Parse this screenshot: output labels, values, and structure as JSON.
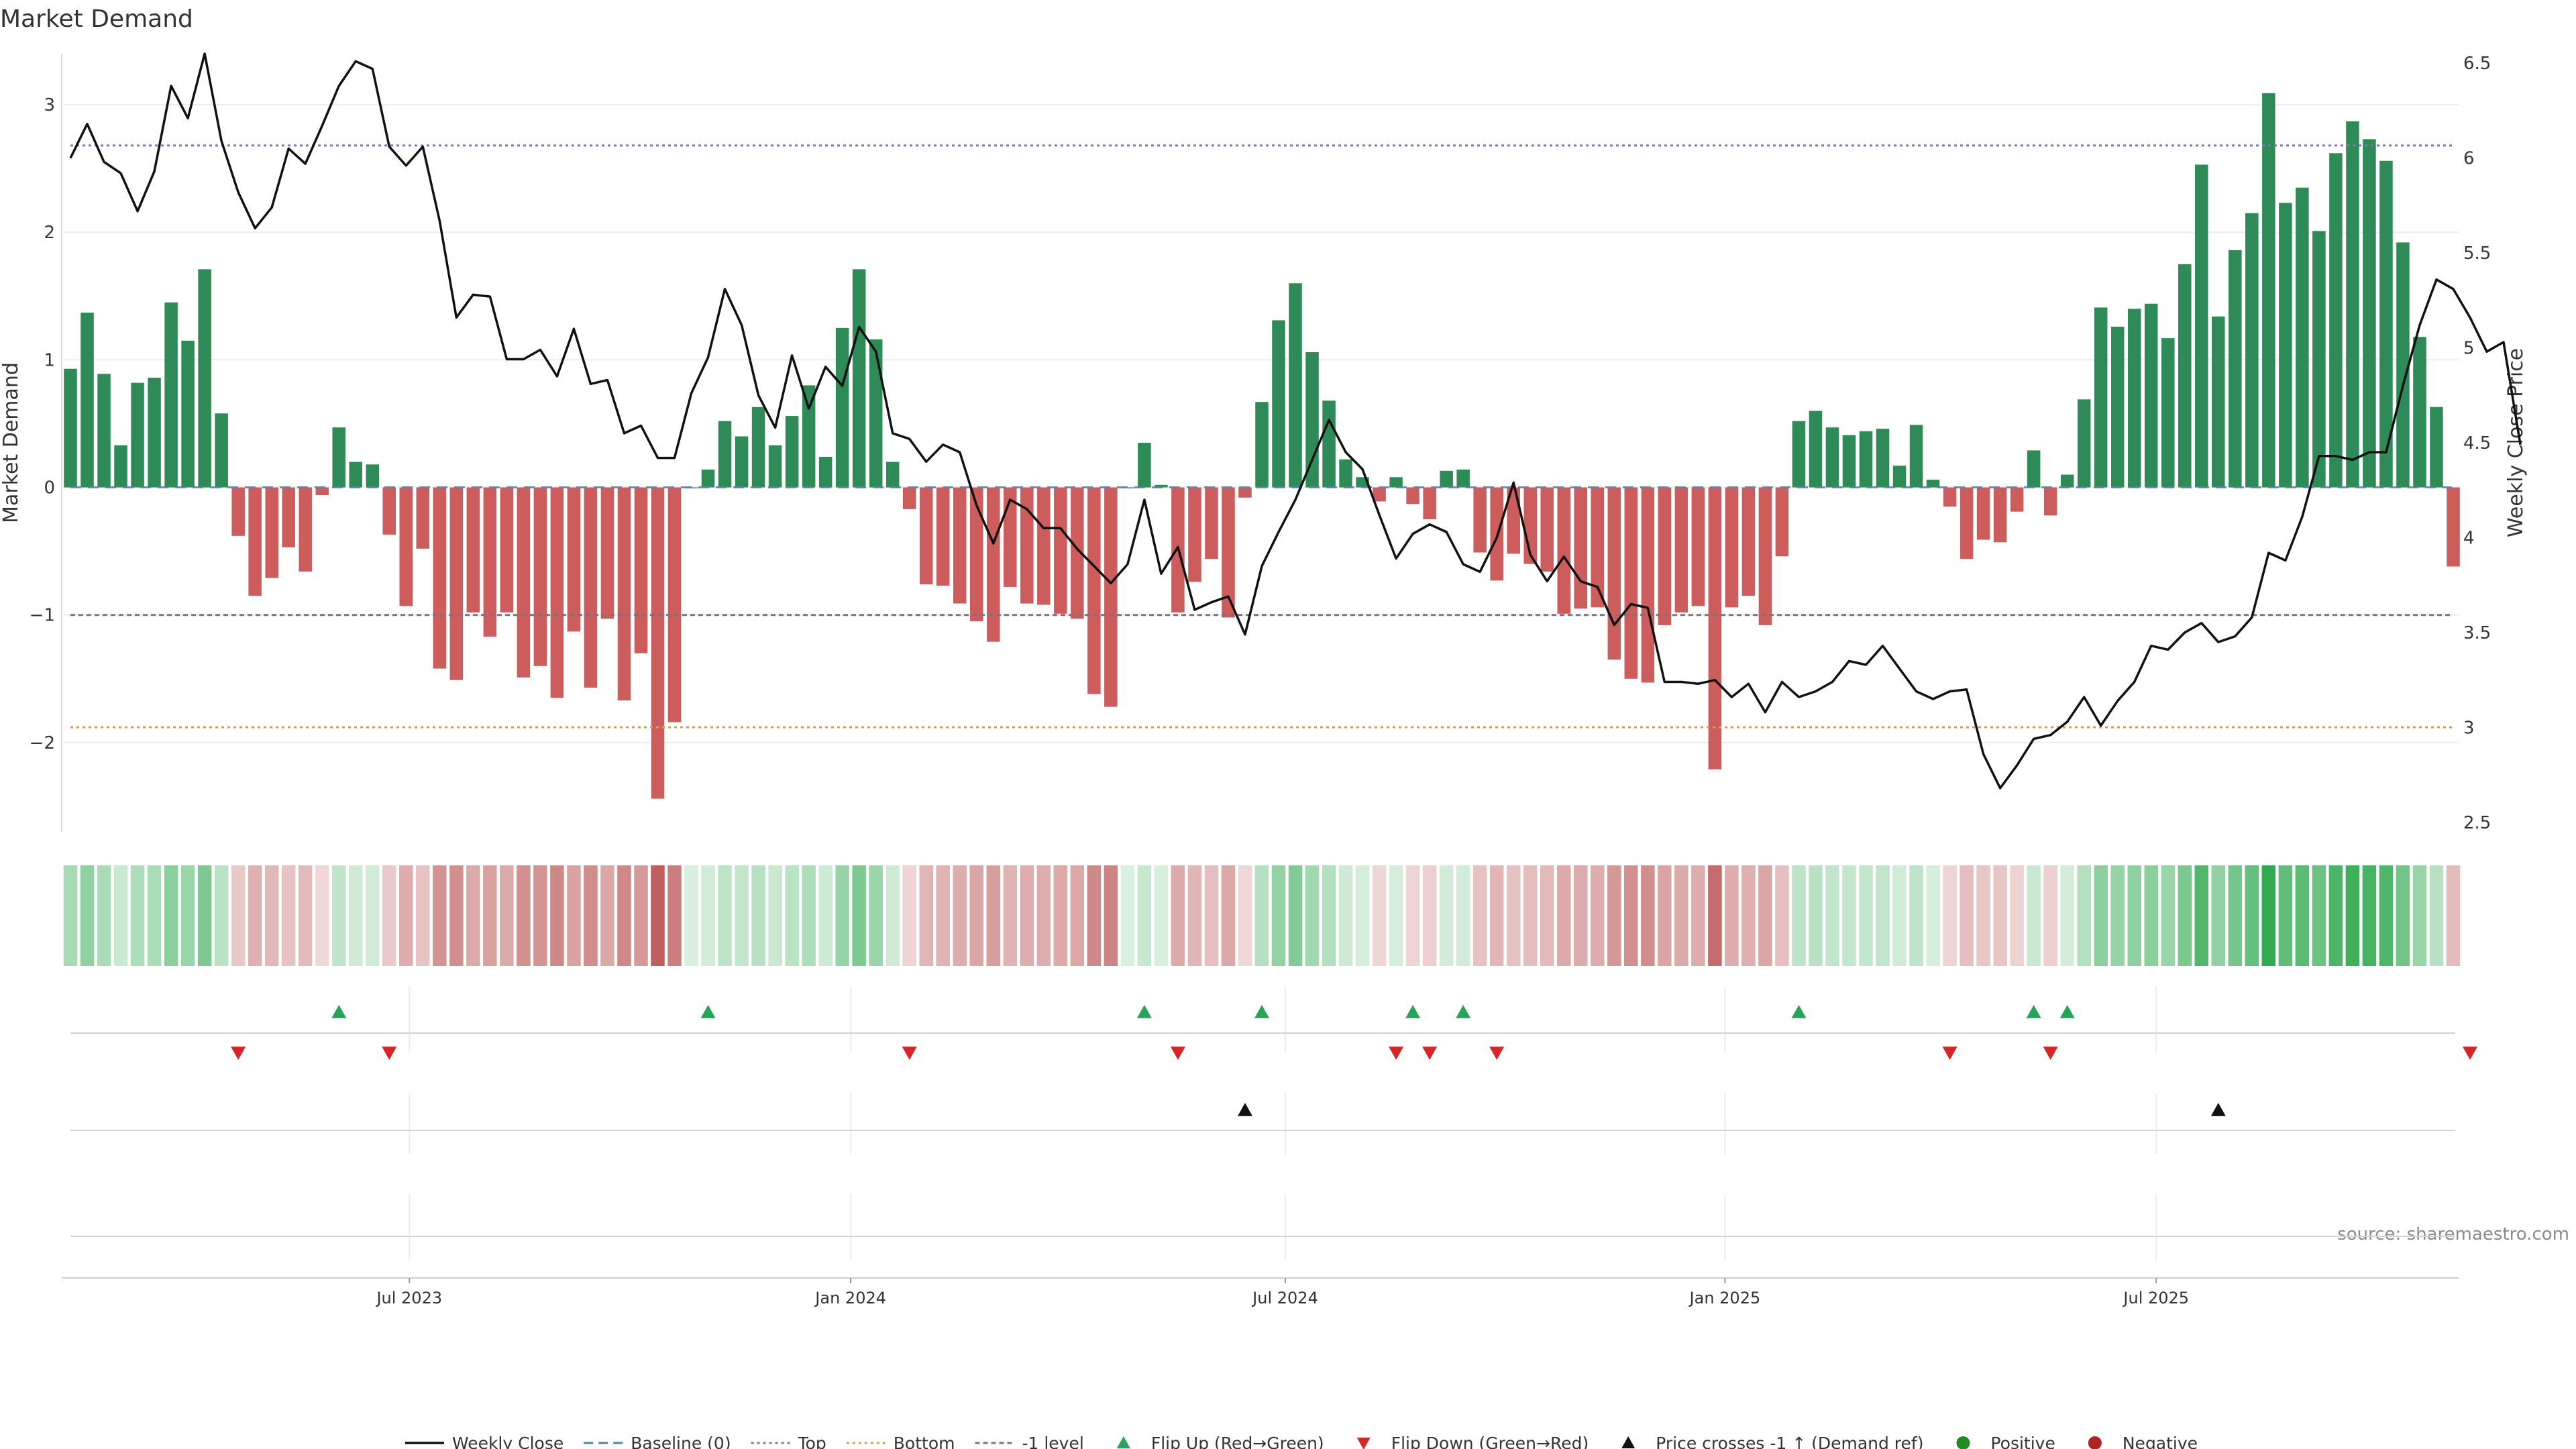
{
  "chart_data": {
    "type": "bar",
    "title": "Market Demand",
    "ylabel_left": "Market Demand",
    "ylabel_right": "Weekly Close Price",
    "source": "source: sharemaestro.com",
    "y_left_range": [
      -2.7,
      3.4
    ],
    "y_right_range": [
      2.45,
      6.55
    ],
    "y_left_ticks": [
      {
        "value": 3,
        "label": "3"
      },
      {
        "value": 2,
        "label": "2"
      },
      {
        "value": 1,
        "label": "1"
      },
      {
        "value": 0,
        "label": "0"
      },
      {
        "value": -1,
        "label": "−1"
      },
      {
        "value": -2,
        "label": "−2"
      }
    ],
    "y_right_ticks": [
      {
        "value": 6.5,
        "label": "6.5"
      },
      {
        "value": 6,
        "label": "6"
      },
      {
        "value": 5.5,
        "label": "5.5"
      },
      {
        "value": 5,
        "label": "5"
      },
      {
        "value": 4.5,
        "label": "4.5"
      },
      {
        "value": 4,
        "label": "4"
      },
      {
        "value": 3.5,
        "label": "3.5"
      },
      {
        "value": 3,
        "label": "3"
      },
      {
        "value": 2.5,
        "label": "2.5"
      }
    ],
    "x_ticks": [
      {
        "index": 20.2,
        "label": "Jul 2023"
      },
      {
        "index": 46.5,
        "label": "Jan 2024"
      },
      {
        "index": 72.4,
        "label": "Jul 2024"
      },
      {
        "index": 98.6,
        "label": "Jan 2025"
      },
      {
        "index": 124.3,
        "label": "Jul 2025"
      }
    ],
    "reference_lines": {
      "top": 2.68,
      "bottom": -1.88,
      "minus_one": -1.0
    },
    "demand": [
      0.93,
      1.37,
      0.89,
      0.33,
      0.82,
      0.86,
      1.45,
      1.15,
      1.71,
      0.58,
      -0.38,
      -0.85,
      -0.71,
      -0.47,
      -0.66,
      -0.06,
      0.47,
      0.2,
      0.18,
      -0.37,
      -0.93,
      -0.48,
      -1.42,
      -1.51,
      -0.98,
      -1.17,
      -0.98,
      -1.49,
      -1.4,
      -1.65,
      -1.13,
      -1.57,
      -1.03,
      -1.67,
      -1.3,
      -2.44,
      -1.84,
      0.0,
      0.14,
      0.52,
      0.4,
      0.63,
      0.33,
      0.56,
      0.8,
      0.24,
      1.25,
      1.71,
      1.16,
      0.2,
      -0.17,
      -0.76,
      -0.77,
      -0.91,
      -1.05,
      -1.21,
      -0.78,
      -0.91,
      -0.92,
      -0.99,
      -1.03,
      -1.62,
      -1.72,
      0.0,
      0.35,
      0.02,
      -0.98,
      -0.74,
      -0.56,
      -1.02,
      -0.08,
      0.67,
      1.31,
      1.6,
      1.06,
      0.68,
      0.22,
      0.08,
      -0.11,
      0.08,
      -0.13,
      -0.25,
      0.13,
      0.14,
      -0.51,
      -0.73,
      -0.52,
      -0.6,
      -0.66,
      -0.99,
      -0.95,
      -0.94,
      -1.35,
      -1.5,
      -1.53,
      -1.08,
      -0.98,
      -0.93,
      -2.21,
      -0.94,
      -0.85,
      -1.08,
      -0.54,
      0.52,
      0.6,
      0.47,
      0.41,
      0.44,
      0.46,
      0.17,
      0.49,
      0.06,
      -0.15,
      -0.56,
      -0.41,
      -0.43,
      -0.19,
      0.29,
      -0.22,
      0.1,
      0.69,
      1.41,
      1.26,
      1.4,
      1.44,
      1.17,
      1.75,
      2.53,
      1.34,
      1.86,
      2.15,
      3.09,
      2.23,
      2.35,
      2.01,
      2.62,
      2.87,
      2.73,
      2.56,
      1.92,
      1.18,
      0.63,
      -0.62
    ],
    "close": [
      6.0,
      6.18,
      5.98,
      5.92,
      5.72,
      5.93,
      6.38,
      6.21,
      6.55,
      6.09,
      5.82,
      5.63,
      5.74,
      6.05,
      5.97,
      6.17,
      6.38,
      6.51,
      6.47,
      6.06,
      5.96,
      6.06,
      5.67,
      5.16,
      5.28,
      5.27,
      4.94,
      4.94,
      4.99,
      4.85,
      5.1,
      4.81,
      4.83,
      4.55,
      4.59,
      4.42,
      4.42,
      4.76,
      4.95,
      5.31,
      5.12,
      4.75,
      4.58,
      4.96,
      4.68,
      4.9,
      4.8,
      5.11,
      4.98,
      4.55,
      4.52,
      4.4,
      4.49,
      4.45,
      4.17,
      3.97,
      4.2,
      4.15,
      4.05,
      4.05,
      3.94,
      3.85,
      3.76,
      3.86,
      4.2,
      3.81,
      3.95,
      3.62,
      3.66,
      3.69,
      3.49,
      3.85,
      4.03,
      4.2,
      4.41,
      4.62,
      4.45,
      4.36,
      4.12,
      3.89,
      4.02,
      4.07,
      4.03,
      3.86,
      3.82,
      4.0,
      4.29,
      3.91,
      3.77,
      3.9,
      3.77,
      3.74,
      3.54,
      3.65,
      3.63,
      3.24,
      3.24,
      3.23,
      3.25,
      3.16,
      3.23,
      3.08,
      3.24,
      3.16,
      3.19,
      3.24,
      3.35,
      3.33,
      3.43,
      3.31,
      3.19,
      3.15,
      3.19,
      3.2,
      2.86,
      2.68,
      2.8,
      2.94,
      2.96,
      3.03,
      3.16,
      3.01,
      3.14,
      3.24,
      3.43,
      3.41,
      3.5,
      3.55,
      3.45,
      3.48,
      3.58,
      3.92,
      3.88,
      4.11,
      4.43,
      4.43,
      4.41,
      4.45,
      4.45,
      4.8,
      5.12,
      5.36,
      5.31,
      5.16,
      4.98,
      5.03,
      4.49
    ],
    "flip_up_indices": [
      16,
      38,
      64,
      71,
      80,
      83,
      103,
      117,
      119
    ],
    "flip_down_indices": [
      10,
      19,
      50,
      66,
      79,
      81,
      85,
      112,
      118,
      143
    ],
    "price_cross_indices": [
      70,
      128
    ],
    "legend": [
      {
        "key": "close",
        "label": "Weekly Close"
      },
      {
        "key": "baseline",
        "label": "Baseline (0)"
      },
      {
        "key": "top",
        "label": "Top"
      },
      {
        "key": "bottom",
        "label": "Bottom"
      },
      {
        "key": "minus1",
        "label": "-1 level"
      },
      {
        "key": "flipup",
        "label": "Flip Up (Red→Green)"
      },
      {
        "key": "flipdown",
        "label": "Flip Down (Green→Red)"
      },
      {
        "key": "cross",
        "label": "Price crosses -1 ↑ (Demand ref)"
      },
      {
        "key": "positive",
        "label": "Positive"
      },
      {
        "key": "negative",
        "label": "Negative"
      }
    ],
    "colors": {
      "positive": "#2e8b57",
      "negative": "#cd5c5c",
      "close": "#111111",
      "baseline": "#4c7fbf",
      "top": "#7a79b8",
      "bottom": "#d4a04c",
      "minus1": "#777777",
      "flip_up": "#27a35a",
      "flip_down": "#d62728",
      "cross": "#111111",
      "positive_legend": "#228b22",
      "negative_legend": "#b22222"
    }
  }
}
